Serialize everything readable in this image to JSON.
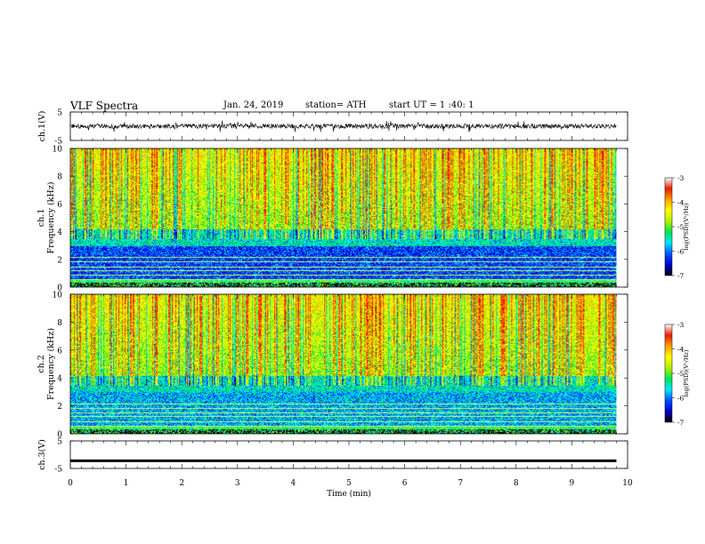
{
  "header": {
    "title": "VLF  Spectra",
    "date": "Jan. 24, 2019",
    "station": "station= ATH",
    "start_ut": "start  UT  =   1  :40: 1"
  },
  "chart_data": [
    {
      "panel": "ch1-waveform",
      "type": "line",
      "ylabel": "ch.1(V)",
      "yticks": [
        "5",
        "-5"
      ],
      "ylim": [
        -5,
        5
      ],
      "baseline": 0,
      "amplitude_range": [
        -1.5,
        1.5
      ]
    },
    {
      "panel": "ch1-spectrogram",
      "type": "heatmap",
      "ylabel": "ch.1\nFrequency (kHz)",
      "yticks": [
        "0",
        "2",
        "4",
        "6",
        "8",
        "10"
      ],
      "ylim": [
        0,
        10
      ],
      "colorbar": {
        "label": "log(PSD)(V²/Hz)",
        "ticks": [
          "-3",
          "-4",
          "-5",
          "-6",
          "-7"
        ],
        "range": [
          -7,
          -3
        ]
      }
    },
    {
      "panel": "ch2-spectrogram",
      "type": "heatmap",
      "ylabel": "ch.2\nFrequency (kHz)",
      "yticks": [
        "0",
        "2",
        "4",
        "6",
        "8",
        "10"
      ],
      "ylim": [
        0,
        10
      ],
      "colorbar": {
        "label": "log(PSD)(V²/Hz)",
        "ticks": [
          "-3",
          "-4",
          "-5",
          "-6",
          "-7"
        ],
        "range": [
          -7,
          -3
        ]
      }
    },
    {
      "panel": "ch3-waveform",
      "type": "line",
      "ylabel": "ch.3(V)",
      "yticks": [
        "5",
        "-5"
      ],
      "ylim": [
        -5,
        5
      ],
      "baseline": -2.2
    }
  ],
  "x_axis": {
    "label": "Time  (min)",
    "ticks": [
      "0",
      "1",
      "2",
      "3",
      "4",
      "5",
      "6",
      "7",
      "8",
      "9",
      "10"
    ],
    "xlim": [
      0,
      10
    ],
    "data_end": 9.8
  },
  "colors": {
    "colormap": [
      "#000000",
      "#0000c8",
      "#0050ff",
      "#00e6ff",
      "#00e650",
      "#b4f000",
      "#ffff00",
      "#ffa000",
      "#e61e00",
      "#ffffff"
    ]
  }
}
